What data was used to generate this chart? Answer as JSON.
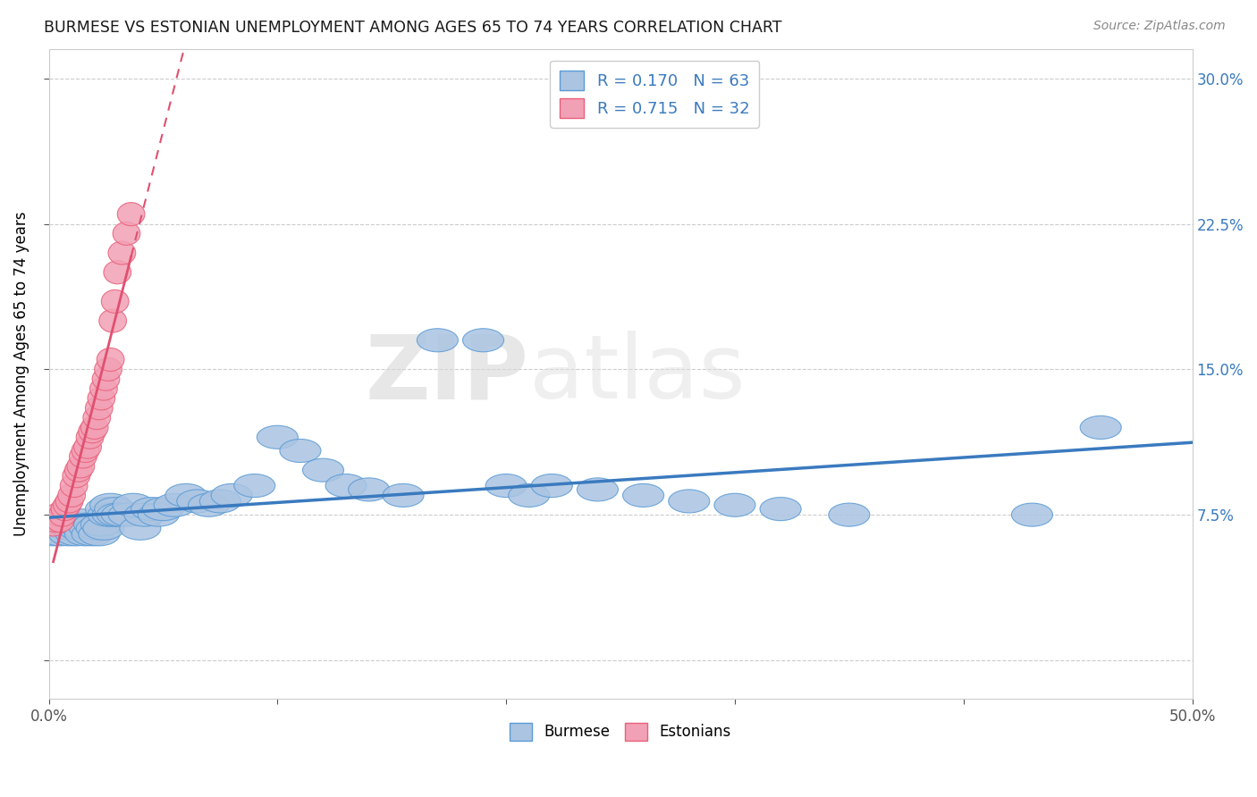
{
  "title": "BURMESE VS ESTONIAN UNEMPLOYMENT AMONG AGES 65 TO 74 YEARS CORRELATION CHART",
  "source": "Source: ZipAtlas.com",
  "ylabel": "Unemployment Among Ages 65 to 74 years",
  "xlim": [
    0.0,
    0.5
  ],
  "ylim": [
    -0.02,
    0.315
  ],
  "xticks": [
    0.0,
    0.1,
    0.2,
    0.3,
    0.4,
    0.5
  ],
  "xticklabels": [
    "0.0%",
    "",
    "",
    "",
    "",
    "50.0%"
  ],
  "yticks": [
    0.0,
    0.075,
    0.15,
    0.225,
    0.3
  ],
  "yticklabels_right": [
    "",
    "7.5%",
    "15.0%",
    "22.5%",
    "30.0%"
  ],
  "burmese_color": "#aac4e2",
  "estonian_color": "#f2a0b5",
  "burmese_edge_color": "#5b9bd5",
  "estonian_edge_color": "#e8607a",
  "burmese_line_color": "#3a7abf",
  "estonian_line_color": "#e05070",
  "R_burmese": 0.17,
  "N_burmese": 63,
  "R_estonian": 0.715,
  "N_estonian": 32,
  "watermark_left": "ZIP",
  "watermark_right": "atlas",
  "grid_color": "#cccccc",
  "burmese_x": [
    0.002,
    0.003,
    0.004,
    0.005,
    0.006,
    0.007,
    0.008,
    0.009,
    0.01,
    0.011,
    0.012,
    0.013,
    0.014,
    0.015,
    0.016,
    0.017,
    0.018,
    0.019,
    0.02,
    0.021,
    0.022,
    0.023,
    0.024,
    0.025,
    0.026,
    0.027,
    0.028,
    0.029,
    0.03,
    0.032,
    0.035,
    0.037,
    0.04,
    0.042,
    0.045,
    0.048,
    0.05,
    0.055,
    0.06,
    0.065,
    0.07,
    0.075,
    0.08,
    0.09,
    0.1,
    0.11,
    0.12,
    0.13,
    0.14,
    0.155,
    0.17,
    0.19,
    0.2,
    0.21,
    0.22,
    0.24,
    0.26,
    0.28,
    0.3,
    0.32,
    0.35,
    0.43,
    0.46
  ],
  "burmese_y": [
    0.065,
    0.07,
    0.068,
    0.065,
    0.07,
    0.072,
    0.068,
    0.065,
    0.068,
    0.07,
    0.065,
    0.068,
    0.072,
    0.068,
    0.065,
    0.07,
    0.068,
    0.065,
    0.07,
    0.068,
    0.065,
    0.07,
    0.068,
    0.078,
    0.075,
    0.08,
    0.075,
    0.078,
    0.075,
    0.075,
    0.075,
    0.08,
    0.068,
    0.075,
    0.078,
    0.075,
    0.078,
    0.08,
    0.085,
    0.082,
    0.08,
    0.082,
    0.085,
    0.09,
    0.115,
    0.108,
    0.098,
    0.09,
    0.088,
    0.085,
    0.165,
    0.165,
    0.09,
    0.085,
    0.09,
    0.088,
    0.085,
    0.082,
    0.08,
    0.078,
    0.075,
    0.075,
    0.12
  ],
  "estonian_x": [
    0.002,
    0.003,
    0.004,
    0.005,
    0.006,
    0.007,
    0.008,
    0.009,
    0.01,
    0.011,
    0.012,
    0.013,
    0.014,
    0.015,
    0.016,
    0.017,
    0.018,
    0.019,
    0.02,
    0.021,
    0.022,
    0.023,
    0.024,
    0.025,
    0.026,
    0.027,
    0.028,
    0.029,
    0.03,
    0.032,
    0.034,
    0.036
  ],
  "estonian_y": [
    0.07,
    0.072,
    0.075,
    0.072,
    0.075,
    0.078,
    0.08,
    0.082,
    0.085,
    0.09,
    0.095,
    0.098,
    0.1,
    0.105,
    0.108,
    0.11,
    0.115,
    0.118,
    0.12,
    0.125,
    0.13,
    0.135,
    0.14,
    0.145,
    0.15,
    0.155,
    0.175,
    0.185,
    0.2,
    0.21,
    0.22,
    0.23
  ]
}
